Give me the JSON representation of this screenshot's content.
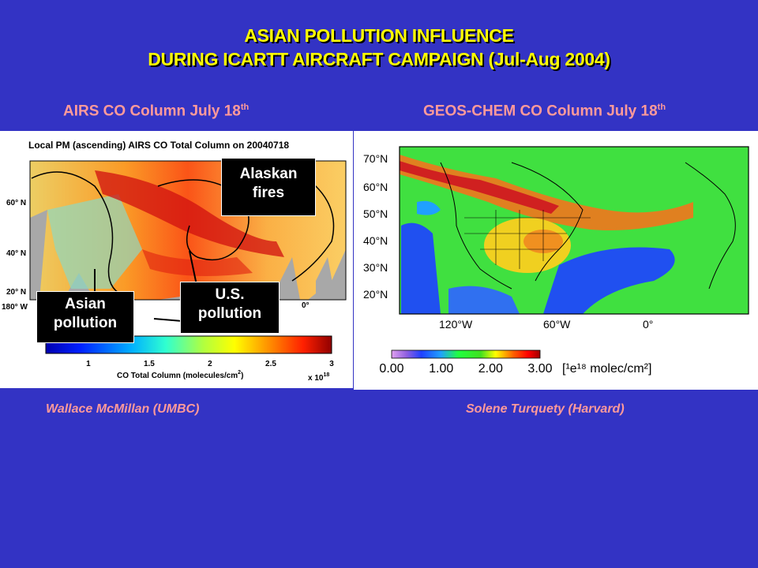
{
  "title": {
    "line1": "ASIAN POLLUTION INFLUENCE",
    "line2": "DURING ICARTT AIRCRAFT CAMPAIGN (Jul-Aug 2004)"
  },
  "left": {
    "subtitle": "AIRS CO Column July 18",
    "subtitle_sup": "th",
    "map_title": "Local PM (ascending) AIRS CO Total Column on 20040718",
    "lat_labels": [
      "60° N",
      "40° N",
      "20° N"
    ],
    "lon_labels": [
      "180° W",
      "0°"
    ],
    "colorbar_ticks": [
      "1",
      "1.5",
      "2",
      "2.5",
      "3"
    ],
    "colorbar_label": "CO Total Column (molecules/cm",
    "colorbar_label_sup": "2",
    "colorbar_label_end": ")",
    "colorbar_multiplier": "x 10",
    "colorbar_multiplier_sup": "18",
    "colorbar_range": [
      1,
      3
    ],
    "callouts": {
      "alaskan": [
        "Alaskan",
        "fires"
      ],
      "us": [
        "U.S.",
        "pollution"
      ],
      "asian": [
        "Asian",
        "pollution"
      ]
    },
    "credit": "Wallace McMillan (UMBC)"
  },
  "right": {
    "subtitle": "GEOS-CHEM CO Column July 18",
    "subtitle_sup": "th",
    "lat_labels": [
      "70°N",
      "60°N",
      "50°N",
      "40°N",
      "30°N",
      "20°N"
    ],
    "lon_labels": [
      "120°W",
      "60°W",
      "0°"
    ],
    "colorbar_ticks": [
      "0.00",
      "1.00",
      "2.00",
      "3.00"
    ],
    "colorbar_range": [
      0,
      3
    ],
    "colorbar_unit": "[¹e¹⁸ molec/cm²]",
    "credit": "Solene Turquety (Harvard)"
  },
  "colors": {
    "background": "#3333c4",
    "title": "#ffff00",
    "subtitle": "#ff9a9a"
  }
}
